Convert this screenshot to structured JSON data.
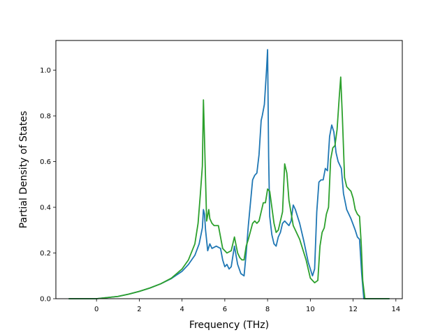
{
  "chart_data": {
    "type": "line",
    "title": "",
    "xlabel": "Frequency (THz)",
    "ylabel": "Partial Density of States",
    "xlim": [
      -1.9,
      14.3
    ],
    "ylim": [
      0.0,
      1.13
    ],
    "xticks": [
      0,
      2,
      4,
      6,
      8,
      10,
      12,
      14
    ],
    "xtick_labels": [
      "0",
      "2",
      "4",
      "6",
      "8",
      "10",
      "12",
      "14"
    ],
    "yticks": [
      0.0,
      0.2,
      0.4,
      0.6,
      0.8,
      1.0
    ],
    "ytick_labels": [
      "0.0",
      "0.2",
      "0.4",
      "0.6",
      "0.8",
      "1.0"
    ],
    "grid": false,
    "legend": "none",
    "series": [
      {
        "color": "#1f77b4",
        "x": [
          -1.3,
          -0.5,
          0.0,
          0.5,
          1.0,
          1.5,
          2.0,
          2.5,
          3.0,
          3.5,
          4.0,
          4.3,
          4.6,
          4.8,
          4.95,
          5.0,
          5.05,
          5.1,
          5.2,
          5.3,
          5.4,
          5.6,
          5.8,
          5.9,
          6.0,
          6.1,
          6.2,
          6.3,
          6.45,
          6.6,
          6.75,
          6.9,
          7.0,
          7.1,
          7.3,
          7.4,
          7.5,
          7.6,
          7.7,
          7.75,
          7.85,
          7.95,
          8.0,
          8.05,
          8.1,
          8.2,
          8.3,
          8.4,
          8.5,
          8.6,
          8.7,
          8.8,
          8.9,
          9.0,
          9.1,
          9.2,
          9.3,
          9.5,
          9.7,
          9.9,
          10.1,
          10.2,
          10.3,
          10.4,
          10.5,
          10.6,
          10.7,
          10.8,
          10.9,
          11.0,
          11.1,
          11.2,
          11.3,
          11.45,
          11.55,
          11.7,
          11.9,
          12.1,
          12.2,
          12.3,
          12.4,
          12.5,
          12.6,
          13.0,
          13.7
        ],
        "y": [
          0.0,
          0.0,
          0.0,
          0.005,
          0.01,
          0.02,
          0.032,
          0.047,
          0.065,
          0.088,
          0.12,
          0.15,
          0.19,
          0.24,
          0.31,
          0.39,
          0.37,
          0.3,
          0.21,
          0.24,
          0.22,
          0.23,
          0.22,
          0.17,
          0.14,
          0.15,
          0.13,
          0.14,
          0.23,
          0.15,
          0.11,
          0.1,
          0.2,
          0.32,
          0.52,
          0.54,
          0.55,
          0.63,
          0.78,
          0.8,
          0.85,
          1.0,
          1.09,
          0.62,
          0.36,
          0.28,
          0.24,
          0.23,
          0.27,
          0.29,
          0.33,
          0.34,
          0.33,
          0.32,
          0.34,
          0.41,
          0.39,
          0.33,
          0.25,
          0.16,
          0.1,
          0.13,
          0.38,
          0.51,
          0.52,
          0.52,
          0.57,
          0.56,
          0.71,
          0.76,
          0.73,
          0.64,
          0.6,
          0.57,
          0.46,
          0.39,
          0.35,
          0.3,
          0.27,
          0.26,
          0.11,
          0.0,
          0.0,
          0.0,
          0.0
        ]
      },
      {
        "color": "#2ca02c",
        "x": [
          -1.3,
          -0.5,
          0.0,
          0.5,
          1.0,
          1.5,
          2.0,
          2.5,
          3.0,
          3.5,
          4.0,
          4.3,
          4.6,
          4.75,
          4.85,
          4.95,
          5.0,
          5.05,
          5.15,
          5.25,
          5.3,
          5.4,
          5.5,
          5.7,
          5.9,
          6.1,
          6.3,
          6.45,
          6.6,
          6.7,
          6.8,
          6.9,
          7.0,
          7.1,
          7.3,
          7.4,
          7.5,
          7.6,
          7.7,
          7.8,
          7.9,
          8.0,
          8.1,
          8.2,
          8.3,
          8.4,
          8.5,
          8.6,
          8.7,
          8.8,
          8.9,
          9.0,
          9.2,
          9.5,
          9.8,
          10.0,
          10.2,
          10.35,
          10.45,
          10.55,
          10.65,
          10.75,
          10.85,
          10.95,
          11.05,
          11.15,
          11.25,
          11.35,
          11.42,
          11.5,
          11.6,
          11.7,
          11.8,
          11.9,
          12.0,
          12.1,
          12.2,
          12.3,
          12.38,
          12.45,
          12.55,
          13.0,
          13.7
        ],
        "y": [
          0.0,
          0.0,
          0.0,
          0.005,
          0.01,
          0.02,
          0.032,
          0.047,
          0.065,
          0.09,
          0.13,
          0.17,
          0.24,
          0.33,
          0.45,
          0.58,
          0.87,
          0.7,
          0.34,
          0.39,
          0.35,
          0.33,
          0.32,
          0.32,
          0.22,
          0.2,
          0.21,
          0.27,
          0.2,
          0.18,
          0.17,
          0.17,
          0.23,
          0.26,
          0.33,
          0.34,
          0.33,
          0.34,
          0.38,
          0.42,
          0.42,
          0.48,
          0.47,
          0.4,
          0.33,
          0.29,
          0.3,
          0.34,
          0.38,
          0.59,
          0.55,
          0.43,
          0.32,
          0.26,
          0.17,
          0.09,
          0.07,
          0.08,
          0.23,
          0.29,
          0.31,
          0.37,
          0.4,
          0.61,
          0.66,
          0.67,
          0.74,
          0.88,
          0.97,
          0.79,
          0.53,
          0.49,
          0.48,
          0.47,
          0.44,
          0.39,
          0.37,
          0.36,
          0.24,
          0.08,
          0.0,
          0.0,
          0.0
        ]
      }
    ]
  }
}
